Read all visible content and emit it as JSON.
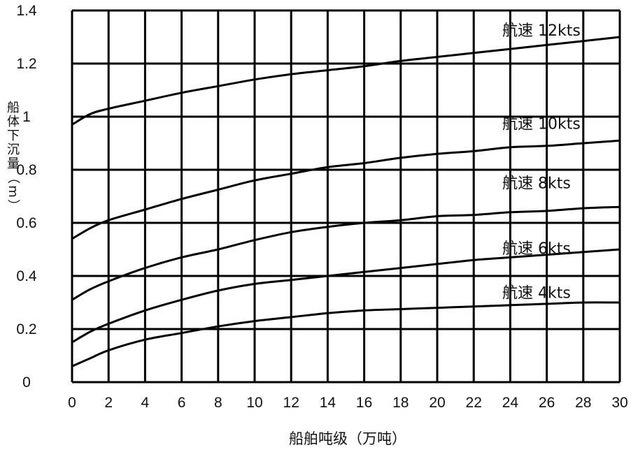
{
  "chart_data": {
    "type": "line",
    "title": "",
    "xlabel": "船舶吨级（万吨）",
    "ylabel": "船体下沉量（m）",
    "xlim": [
      0,
      30
    ],
    "ylim": [
      0,
      1.4
    ],
    "x_ticks": [
      "0",
      "2",
      "4",
      "6",
      "8",
      "10",
      "12",
      "14",
      "16",
      "18",
      "20",
      "22",
      "24",
      "26",
      "28",
      "30"
    ],
    "y_ticks": [
      "0",
      "0.2",
      "0.4",
      "0.6",
      "0.8",
      "1",
      "1.2",
      "1.4"
    ],
    "grid": true,
    "series": [
      {
        "name": "航速 12kts",
        "x": [
          0,
          1,
          2,
          4,
          6,
          8,
          10,
          12,
          14,
          16,
          18,
          20,
          22,
          24,
          26,
          28,
          30
        ],
        "y": [
          0.97,
          1.01,
          1.03,
          1.06,
          1.09,
          1.115,
          1.14,
          1.16,
          1.175,
          1.19,
          1.21,
          1.225,
          1.24,
          1.255,
          1.27,
          1.285,
          1.3
        ]
      },
      {
        "name": "航速 10kts",
        "x": [
          0,
          1,
          2,
          4,
          6,
          8,
          10,
          12,
          14,
          16,
          18,
          20,
          22,
          24,
          26,
          28,
          30
        ],
        "y": [
          0.54,
          0.58,
          0.61,
          0.65,
          0.69,
          0.725,
          0.76,
          0.785,
          0.81,
          0.825,
          0.845,
          0.86,
          0.87,
          0.885,
          0.89,
          0.9,
          0.91
        ]
      },
      {
        "name": "航速 8kts",
        "x": [
          0,
          1,
          2,
          4,
          6,
          8,
          10,
          12,
          14,
          16,
          18,
          20,
          22,
          24,
          26,
          28,
          30
        ],
        "y": [
          0.31,
          0.35,
          0.38,
          0.43,
          0.47,
          0.5,
          0.535,
          0.565,
          0.585,
          0.6,
          0.61,
          0.625,
          0.63,
          0.64,
          0.645,
          0.655,
          0.66
        ]
      },
      {
        "name": "航速 6kts",
        "x": [
          0,
          1,
          2,
          4,
          6,
          8,
          10,
          12,
          14,
          16,
          18,
          20,
          22,
          24,
          26,
          28,
          30
        ],
        "y": [
          0.15,
          0.19,
          0.22,
          0.27,
          0.31,
          0.345,
          0.37,
          0.385,
          0.4,
          0.415,
          0.43,
          0.445,
          0.46,
          0.47,
          0.48,
          0.49,
          0.5
        ]
      },
      {
        "name": "航速 4kts",
        "x": [
          0,
          1,
          2,
          4,
          6,
          8,
          10,
          12,
          14,
          16,
          18,
          20,
          22,
          24,
          26,
          28,
          30
        ],
        "y": [
          0.06,
          0.09,
          0.12,
          0.16,
          0.185,
          0.21,
          0.23,
          0.245,
          0.26,
          0.27,
          0.275,
          0.28,
          0.285,
          0.29,
          0.295,
          0.3,
          0.3
        ]
      }
    ]
  }
}
